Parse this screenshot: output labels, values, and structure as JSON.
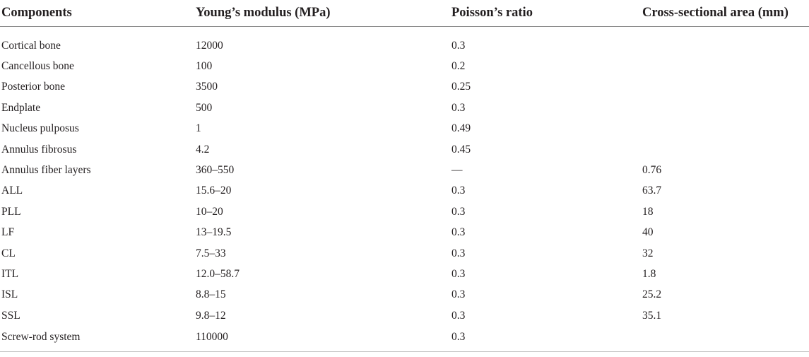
{
  "table": {
    "headers": [
      "Components",
      "Young’s modulus (MPa)",
      "Poisson’s ratio",
      "Cross-sectional area (mm)"
    ],
    "rows": [
      [
        "Cortical bone",
        "12000",
        "0.3",
        ""
      ],
      [
        "Cancellous bone",
        "100",
        "0.2",
        ""
      ],
      [
        "Posterior bone",
        "3500",
        "0.25",
        ""
      ],
      [
        "Endplate",
        "500",
        "0.3",
        ""
      ],
      [
        "Nucleus pulposus",
        "1",
        "0.49",
        ""
      ],
      [
        "Annulus fibrosus",
        "4.2",
        "0.45",
        ""
      ],
      [
        "Annulus fiber layers",
        "360–550",
        "—",
        "0.76"
      ],
      [
        "ALL",
        "15.6–20",
        "0.3",
        "63.7"
      ],
      [
        "PLL",
        "10–20",
        "0.3",
        "18"
      ],
      [
        "LF",
        "13–19.5",
        "0.3",
        "40"
      ],
      [
        "CL",
        "7.5–33",
        "0.3",
        "32"
      ],
      [
        "ITL",
        "12.0–58.7",
        "0.3",
        "1.8"
      ],
      [
        "ISL",
        "8.8–15",
        "0.3",
        "25.2"
      ],
      [
        "SSL",
        "9.8–12",
        "0.3",
        "35.1"
      ],
      [
        "Screw-rod system",
        "110000",
        "0.3",
        ""
      ]
    ]
  }
}
